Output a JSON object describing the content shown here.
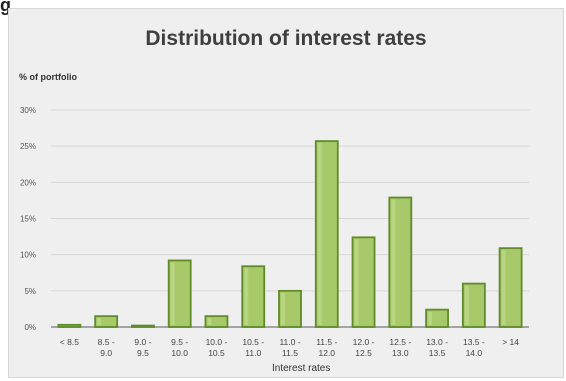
{
  "page": {
    "corner_label": "g"
  },
  "chart_data": {
    "type": "bar",
    "title": "Distribution of interest rates",
    "xlabel": "Interest rates",
    "ylabel": "% of portfolio",
    "ylim": [
      0,
      30
    ],
    "y_ticks": [
      "0%",
      "5%",
      "10%",
      "15%",
      "20%",
      "25%",
      "30%"
    ],
    "categories": [
      [
        "< 8.5"
      ],
      [
        "8.5 -",
        "9.0"
      ],
      [
        "9.0 -",
        "9.5"
      ],
      [
        "9.5 -",
        "10.0"
      ],
      [
        "10.0 -",
        "10.5"
      ],
      [
        "10.5 -",
        "11.0"
      ],
      [
        "11.0 -",
        "11.5"
      ],
      [
        "11.5 -",
        "12.0"
      ],
      [
        "12.0 -",
        "12.5"
      ],
      [
        "12.5 -",
        "13.0"
      ],
      [
        "13.0 -",
        "13.5"
      ],
      [
        "13.5 -",
        "14.0"
      ],
      [
        "> 14"
      ]
    ],
    "values": [
      0.3,
      1.5,
      0.2,
      9.2,
      1.5,
      8.4,
      5.0,
      25.7,
      12.4,
      17.9,
      2.4,
      6.0,
      10.9
    ],
    "grid": true,
    "legend": "none",
    "colors": {
      "bar_fill": "#a7c96a",
      "bar_edge": "#5f8b2a",
      "bar_highlight": "#c8df95",
      "grid": "#d7d7d7",
      "axis": "#8c8c8c",
      "background": "#efefef"
    }
  }
}
